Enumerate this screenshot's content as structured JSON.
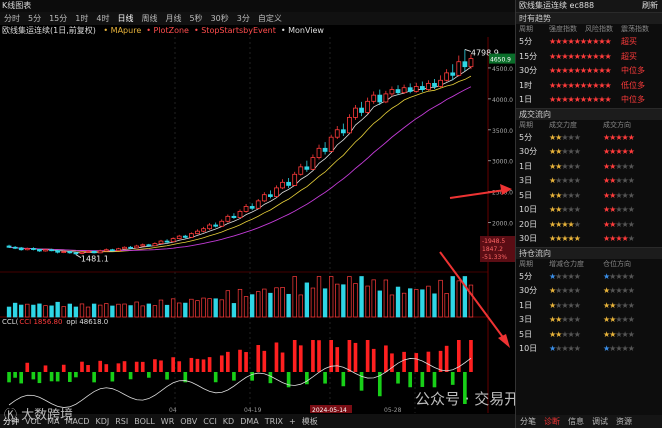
{
  "window": {
    "title": "K线图表"
  },
  "periods": [
    "分时",
    "5分",
    "15分",
    "1时",
    "4时",
    "日线",
    "周线",
    "月线",
    "5秒",
    "30秒",
    "3分",
    "自定义"
  ],
  "period_selected": "日线",
  "indicator_line": {
    "symbol": "欧线集运连续(1日,前复权)",
    "items": [
      "MApure",
      "PlotZone",
      "StopStartsbyEvent",
      "MonView"
    ]
  },
  "price_labels": {
    "high": "4798.9",
    "low": "1481.1",
    "last": "4650.9",
    "boxes": [
      "-1948.5",
      "1847.2",
      "-51.33%"
    ]
  },
  "y_ticks": [
    "4500.0",
    "4000.0",
    "3500.0",
    "3000.0",
    "2500.0",
    "2000.0"
  ],
  "x_ticks": [
    "04",
    "04-19",
    "2024-05-14",
    "05-28"
  ],
  "subchart_label": {
    "name": "CCL(",
    "cci": "CCI 1856.80",
    "opi": "opi 48618.0"
  },
  "bottom_tabs": [
    "分钟",
    "VOL",
    "MA",
    "MACD",
    "KDJ",
    "RSI",
    "BOLL",
    "WR",
    "OBV",
    "CCI",
    "KD",
    "DMA",
    "TRIX",
    "+",
    "模板"
  ],
  "watermark": {
    "left": "大数跨境",
    "right": "公众号 · 交易开拓者TB"
  },
  "right_panel": {
    "title": "欧线集运连续 ec888",
    "refresh": "刷新",
    "section1": "时有趋势",
    "cols1": [
      "周期",
      "强度指数",
      "风险指数",
      "震荡指数"
    ],
    "rows1": [
      {
        "p": "5分",
        "s": "★★★★★",
        "t": "超买"
      },
      {
        "p": "15分",
        "s": "★★★★★",
        "t": "超买"
      },
      {
        "p": "30分",
        "s": "★★★★★",
        "t": "中位多"
      },
      {
        "p": "1时",
        "s": "★★★★★",
        "t": "低位多"
      },
      {
        "p": "1日",
        "s": "★★★★★",
        "t": "中位多"
      }
    ],
    "section2": "成交流向",
    "cols2": [
      "周期",
      "成交力度",
      "成交方向"
    ],
    "rows2": [
      "5分",
      "30分",
      "1日",
      "3日",
      "5日",
      "10日",
      "20日",
      "30日"
    ],
    "section3": "持仓流向",
    "cols3": [
      "周期",
      "增减仓力度",
      "仓位方向"
    ],
    "rows3": [
      "5分",
      "30分",
      "1日",
      "3日",
      "5日",
      "10日"
    ],
    "tabs": [
      "分笔",
      "诊断",
      "信息",
      "调试",
      "资源"
    ],
    "tab_selected": "诊断",
    "colors": {
      "red": "#ff3b3b",
      "gold": "#e8b33a",
      "blue": "#3a8ee8",
      "gray": "#555"
    }
  },
  "chart_data": {
    "type": "candlestick",
    "ylim": [
      1200,
      5000
    ],
    "candles": [
      [
        1620,
        1600,
        1640,
        1590
      ],
      [
        1600,
        1590,
        1620,
        1570
      ],
      [
        1590,
        1560,
        1605,
        1545
      ],
      [
        1560,
        1580,
        1595,
        1550
      ],
      [
        1580,
        1565,
        1600,
        1550
      ],
      [
        1565,
        1540,
        1575,
        1525
      ],
      [
        1540,
        1560,
        1570,
        1530
      ],
      [
        1560,
        1545,
        1575,
        1535
      ],
      [
        1545,
        1520,
        1560,
        1500
      ],
      [
        1520,
        1530,
        1545,
        1505
      ],
      [
        1530,
        1510,
        1540,
        1495
      ],
      [
        1510,
        1500,
        1525,
        1481
      ],
      [
        1500,
        1520,
        1535,
        1490
      ],
      [
        1520,
        1535,
        1555,
        1510
      ],
      [
        1535,
        1510,
        1545,
        1500
      ],
      [
        1510,
        1540,
        1560,
        1505
      ],
      [
        1540,
        1560,
        1580,
        1530
      ],
      [
        1560,
        1545,
        1575,
        1535
      ],
      [
        1545,
        1575,
        1590,
        1540
      ],
      [
        1575,
        1600,
        1615,
        1565
      ],
      [
        1600,
        1590,
        1620,
        1575
      ],
      [
        1590,
        1620,
        1640,
        1580
      ],
      [
        1620,
        1640,
        1660,
        1610
      ],
      [
        1640,
        1625,
        1655,
        1610
      ],
      [
        1625,
        1660,
        1680,
        1615
      ],
      [
        1660,
        1700,
        1720,
        1650
      ],
      [
        1700,
        1690,
        1730,
        1670
      ],
      [
        1690,
        1740,
        1760,
        1680
      ],
      [
        1740,
        1780,
        1800,
        1730
      ],
      [
        1780,
        1760,
        1800,
        1745
      ],
      [
        1760,
        1820,
        1840,
        1750
      ],
      [
        1820,
        1860,
        1890,
        1810
      ],
      [
        1860,
        1900,
        1930,
        1840
      ],
      [
        1900,
        1960,
        1990,
        1880
      ],
      [
        1960,
        1940,
        2000,
        1920
      ],
      [
        1940,
        2020,
        2050,
        1930
      ],
      [
        2020,
        2100,
        2130,
        2000
      ],
      [
        2100,
        2080,
        2150,
        2060
      ],
      [
        2080,
        2180,
        2210,
        2070
      ],
      [
        2180,
        2260,
        2300,
        2160
      ],
      [
        2260,
        2230,
        2310,
        2200
      ],
      [
        2230,
        2350,
        2380,
        2220
      ],
      [
        2350,
        2450,
        2490,
        2330
      ],
      [
        2450,
        2420,
        2520,
        2390
      ],
      [
        2420,
        2560,
        2600,
        2410
      ],
      [
        2560,
        2650,
        2700,
        2540
      ],
      [
        2650,
        2600,
        2720,
        2560
      ],
      [
        2600,
        2780,
        2820,
        2590
      ],
      [
        2780,
        2900,
        2950,
        2760
      ],
      [
        2900,
        2860,
        3000,
        2820
      ],
      [
        2860,
        3050,
        3100,
        2850
      ],
      [
        3050,
        3200,
        3260,
        3020
      ],
      [
        3200,
        3150,
        3300,
        3100
      ],
      [
        3150,
        3380,
        3420,
        3140
      ],
      [
        3380,
        3500,
        3560,
        3350
      ],
      [
        3500,
        3450,
        3600,
        3400
      ],
      [
        3450,
        3700,
        3750,
        3440
      ],
      [
        3700,
        3850,
        3900,
        3660
      ],
      [
        3850,
        3780,
        3950,
        3720
      ],
      [
        3780,
        3960,
        4020,
        3760
      ],
      [
        3960,
        4060,
        4120,
        3920
      ],
      [
        4060,
        3950,
        4150,
        3900
      ],
      [
        3950,
        4080,
        4130,
        3930
      ],
      [
        4080,
        4150,
        4200,
        4040
      ],
      [
        4150,
        4100,
        4220,
        4060
      ],
      [
        4100,
        4180,
        4230,
        4080
      ],
      [
        4180,
        4120,
        4250,
        4090
      ],
      [
        4120,
        4200,
        4260,
        4100
      ],
      [
        4200,
        4150,
        4280,
        4110
      ],
      [
        4150,
        4250,
        4300,
        4130
      ],
      [
        4250,
        4200,
        4320,
        4160
      ],
      [
        4200,
        4300,
        4380,
        4180
      ],
      [
        4300,
        4420,
        4480,
        4280
      ],
      [
        4420,
        4380,
        4560,
        4300
      ],
      [
        4380,
        4600,
        4700,
        4360
      ],
      [
        4600,
        4520,
        4798.9,
        4450
      ],
      [
        4520,
        4650.9,
        4720,
        4480
      ]
    ]
  }
}
